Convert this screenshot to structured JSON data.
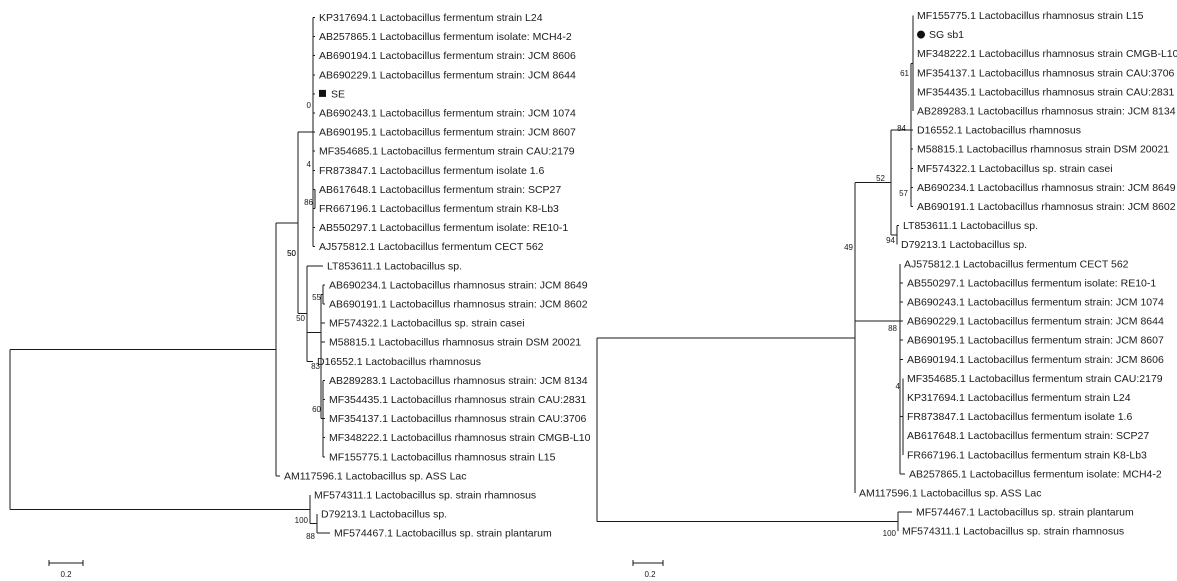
{
  "trees": [
    {
      "name": "left",
      "scale_label": "0.2",
      "taxa": [
        "KP317694.1 Lactobacillus fermentum strain L24",
        "AB257865.1 Lactobacillus fermentum isolate: MCH4-2",
        "AB690194.1 Lactobacillus fermentum strain: JCM 8606",
        "AB690229.1 Lactobacillus fermentum strain: JCM 8644",
        "SE",
        "AB690243.1 Lactobacillus fermentum strain: JCM 1074",
        "AB690195.1 Lactobacillus fermentum strain: JCM 8607",
        "MF354685.1 Lactobacillus fermentum strain CAU:2179",
        "FR873847.1 Lactobacillus fermentum isolate 1.6",
        "AB617648.1 Lactobacillus fermentum strain: SCP27",
        "FR667196.1 Lactobacillus fermentum strain K8-Lb3",
        "AB550297.1 Lactobacillus fermentum isolate: RE10-1",
        "AJ575812.1 Lactobacillus fermentum CECT 562",
        "LT853611.1 Lactobacillus sp.",
        "AB690234.1 Lactobacillus rhamnosus strain: JCM 8649",
        "AB690191.1 Lactobacillus rhamnosus strain: JCM 8602",
        "MF574322.1 Lactobacillus sp. strain casei",
        "M58815.1 Lactobacillus rhamnosus strain DSM 20021",
        "D16552.1 Lactobacillus rhamnosus",
        "AB289283.1 Lactobacillus rhamnosus strain: JCM 8134",
        "MF354435.1 Lactobacillus rhamnosus strain CAU:2831",
        "MF354137.1 Lactobacillus rhamnosus strain CAU:3706",
        "MF348222.1 Lactobacillus rhamnosus strain CMGB-L10",
        "MF155775.1 Lactobacillus rhamnosus strain L15",
        "AM117596.1 Lactobacillus sp. ASS Lac",
        "MF574311.1 Lactobacillus sp. strain rhamnosus",
        "D79213.1 Lactobacillus sp.",
        "MF574467.1 Lactobacillus sp. strain plantarum"
      ],
      "bootstrap": [
        "0",
        "4",
        "86",
        "50",
        "55",
        "50",
        "83",
        "60",
        "100",
        "88"
      ]
    },
    {
      "name": "right",
      "scale_label": "0.2",
      "taxa": [
        "MF155775.1 Lactobacillus rhamnosus strain L15",
        "SG sb1",
        "MF348222.1 Lactobacillus rhamnosus strain CMGB-L10",
        "MF354137.1 Lactobacillus rhamnosus strain CAU:3706",
        "MF354435.1 Lactobacillus rhamnosus strain CAU:2831",
        "AB289283.1 Lactobacillus rhamnosus strain: JCM 8134",
        "D16552.1 Lactobacillus rhamnosus",
        "M58815.1 Lactobacillus rhamnosus strain DSM 20021",
        "MF574322.1 Lactobacillus sp. strain casei",
        "AB690234.1 Lactobacillus rhamnosus strain: JCM 8649",
        "AB690191.1 Lactobacillus rhamnosus strain: JCM 8602",
        "LT853611.1 Lactobacillus sp.",
        "D79213.1 Lactobacillus sp.",
        "AJ575812.1 Lactobacillus fermentum CECT 562",
        "AB550297.1 Lactobacillus fermentum isolate: RE10-1",
        "AB690243.1 Lactobacillus fermentum strain: JCM 1074",
        "AB690229.1 Lactobacillus fermentum strain: JCM 8644",
        "AB690195.1 Lactobacillus fermentum strain: JCM 8607",
        "AB690194.1 Lactobacillus fermentum strain: JCM 8606",
        "MF354685.1 Lactobacillus fermentum strain CAU:2179",
        "KP317694.1 Lactobacillus fermentum strain L24",
        "FR873847.1 Lactobacillus fermentum isolate 1.6",
        "AB617648.1 Lactobacillus fermentum strain: SCP27",
        "FR667196.1 Lactobacillus fermentum strain K8-Lb3",
        "AB257865.1 Lactobacillus fermentum isolate: MCH4-2",
        "AM117596.1 Lactobacillus sp. ASS Lac",
        "MF574467.1 Lactobacillus sp. strain plantarum",
        "MF574311.1 Lactobacillus sp. strain rhamnosus"
      ],
      "bootstrap": [
        "61",
        "84",
        "52",
        "57",
        "49",
        "94",
        "88",
        "4",
        "100"
      ]
    }
  ]
}
